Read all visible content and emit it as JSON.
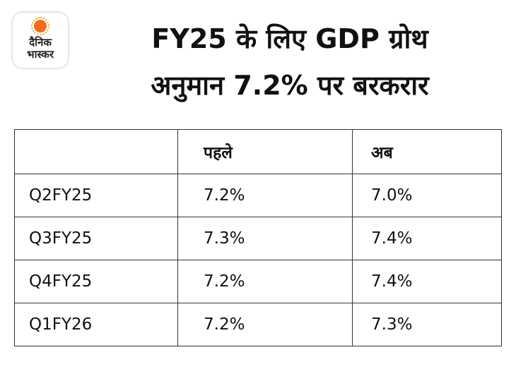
{
  "logo": {
    "line1": "दैनिक",
    "line2": "भास्कर",
    "accent_color": "#f26d21"
  },
  "title": {
    "line1": "FY25 के लिए GDP ग्रोथ",
    "line2": "अनुमान 7.2% पर बरकरार"
  },
  "table": {
    "headers": [
      "",
      "पहले",
      "अब"
    ],
    "rows": [
      [
        "Q2FY25",
        "7.2%",
        "7.0%"
      ],
      [
        "Q3FY25",
        "7.3%",
        "7.4%"
      ],
      [
        "Q4FY25",
        "7.2%",
        "7.4%"
      ],
      [
        "Q1FY26",
        "7.2%",
        "7.3%"
      ]
    ]
  }
}
